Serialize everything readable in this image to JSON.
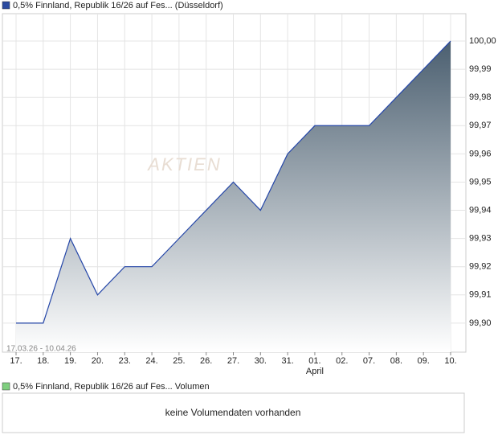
{
  "chart_data": {
    "type": "area",
    "title": "0,5% Finnland, Republik 16/26 auf Fes... (Düsseldorf)",
    "legend_color": "#2b4ba0",
    "date_range": "17.03.26 - 10.04.26",
    "watermark": "AKTIEN",
    "categories": [
      "17.",
      "18.",
      "19.",
      "20.",
      "23.",
      "24.",
      "25.",
      "26.",
      "27.",
      "30.",
      "31.",
      "01.",
      "02.",
      "07.",
      "08.",
      "09.",
      "10."
    ],
    "x_sublabels": [
      null,
      null,
      null,
      null,
      null,
      null,
      null,
      null,
      null,
      null,
      null,
      "April",
      null,
      null,
      null,
      null,
      null
    ],
    "line_color": "#2446a8",
    "fill_color": "#4b5f70",
    "values": [
      99.9,
      99.9,
      99.93,
      99.91,
      99.92,
      99.92,
      99.93,
      99.94,
      99.95,
      99.94,
      99.96,
      99.97,
      99.97,
      99.97,
      99.98,
      99.99,
      100.0
    ],
    "ylim": [
      99.8897,
      100.0097
    ],
    "yticks": [
      {
        "value": 99.9,
        "label": "99,90"
      },
      {
        "value": 99.91,
        "label": "99,91"
      },
      {
        "value": 99.92,
        "label": "99,92"
      },
      {
        "value": 99.93,
        "label": "99,93"
      },
      {
        "value": 99.94,
        "label": "99,94"
      },
      {
        "value": 99.95,
        "label": "99,95"
      },
      {
        "value": 99.96,
        "label": "99,96"
      },
      {
        "value": 99.97,
        "label": "99,97"
      },
      {
        "value": 99.98,
        "label": "99,98"
      },
      {
        "value": 99.99,
        "label": "99,99"
      },
      {
        "value": 100.0,
        "label": "100,00"
      }
    ],
    "grid": true,
    "volume_panel": {
      "title": "0,5% Finnland, Republik 16/26 auf Fes... Volumen",
      "legend_color": "#7fcf7f",
      "message": "keine Volumendaten vorhanden"
    }
  }
}
